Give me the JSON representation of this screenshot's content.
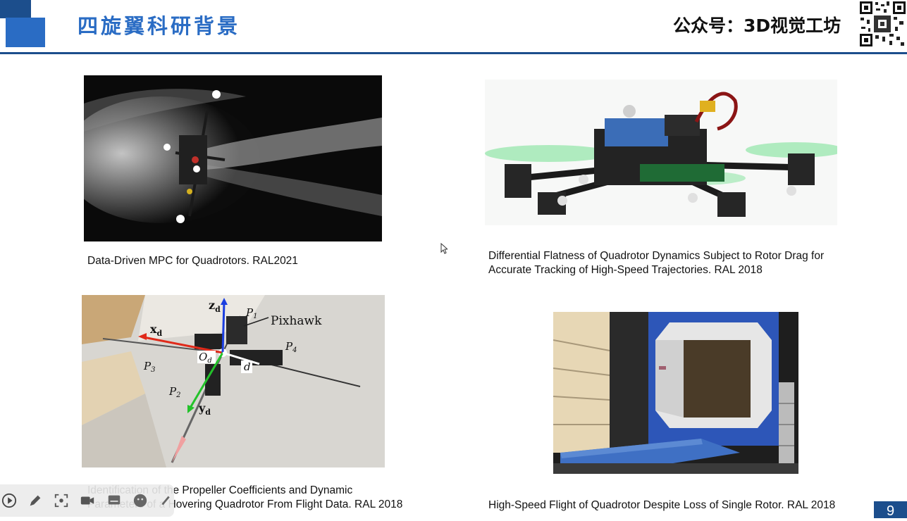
{
  "header": {
    "title": "四旋翼科研背景",
    "account": "公众号：3D视觉工坊"
  },
  "figures": [
    {
      "caption_lines": [
        "Data-Driven MPC for Quadrotors. RAL2021"
      ]
    },
    {
      "caption_lines": [
        "Differential Flatness of Quadrotor Dynamics Subject to Rotor Drag for",
        "Accurate Tracking of High-Speed Trajectories. RAL 2018"
      ]
    },
    {
      "caption_lines": [
        "Identification of the Propeller Coefficients and Dynamic",
        "Parameters of a Hovering Quadrotor From Flight Data. RAL 2018"
      ],
      "annotations": {
        "zd": "z",
        "zd_sub": "d",
        "xd": "x",
        "xd_sub": "d",
        "yd": "y",
        "yd_sub": "d",
        "od": "O",
        "od_sub": "d",
        "d": "d",
        "p1": "P",
        "p1_sub": "1",
        "p2": "P",
        "p2_sub": "2",
        "p3": "P",
        "p3_sub": "3",
        "p4": "P",
        "p4_sub": "4",
        "pixhawk": "Pixhawk"
      }
    },
    {
      "caption_lines": [
        "High-Speed Flight of Quadrotor Despite Loss of Single Rotor. RAL 2018"
      ]
    }
  ],
  "page_number": "9",
  "toolbar_icons": [
    "play-icon",
    "pen-icon",
    "screenshot-icon",
    "camera-icon",
    "subtitle-icon",
    "emoji-icon",
    "more-icon"
  ],
  "colors": {
    "accent": "#2a6cc4",
    "dark_accent": "#1c4e8c"
  }
}
